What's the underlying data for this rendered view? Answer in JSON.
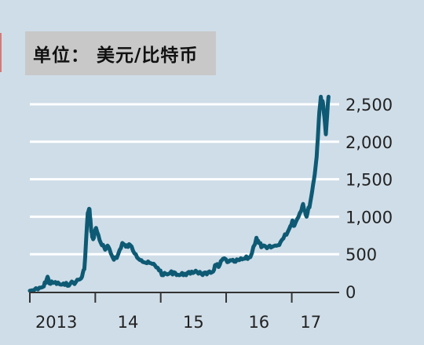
{
  "unit": {
    "label": "单位：",
    "value": "美元/比特币"
  },
  "colors": {
    "background": "#cfdde8",
    "line": "#0e5a74",
    "gridline": "#ffffff",
    "axis": "#333333",
    "label_box": "#c8c8c8"
  },
  "chart_data": {
    "type": "line",
    "title": "",
    "xlabel": "",
    "ylabel": "单位： 美元/比特币",
    "ylim": [
      0,
      2500
    ],
    "xlim": [
      "2013-01-01",
      "2017-08-01"
    ],
    "yticks": [
      0,
      500,
      1000,
      1500,
      2000,
      2500
    ],
    "ytick_labels": [
      "0",
      "500",
      "1,000",
      "1,500",
      "2,000",
      "2,500"
    ],
    "xticks": [
      "2013-01-01",
      "2014-01-01",
      "2015-01-01",
      "2016-01-01",
      "2017-01-01"
    ],
    "xtick_labels": [
      "2013",
      "14",
      "15",
      "16",
      "17"
    ],
    "grid": "horizontal",
    "series": [
      {
        "name": "",
        "x": [
          "2013-01-01",
          "2013-02-15",
          "2013-03-20",
          "2013-04-10",
          "2013-04-20",
          "2013-05-15",
          "2013-06-15",
          "2013-07-15",
          "2013-08-15",
          "2013-09-15",
          "2013-10-15",
          "2013-11-01",
          "2013-11-20",
          "2013-11-30",
          "2013-12-10",
          "2013-12-20",
          "2014-01-05",
          "2014-02-01",
          "2014-02-25",
          "2014-03-15",
          "2014-04-10",
          "2014-05-01",
          "2014-06-01",
          "2014-06-20",
          "2014-07-15",
          "2014-08-15",
          "2014-09-15",
          "2014-10-15",
          "2014-11-15",
          "2014-12-15",
          "2015-01-15",
          "2015-02-15",
          "2015-03-15",
          "2015-04-15",
          "2015-05-15",
          "2015-06-15",
          "2015-07-15",
          "2015-08-15",
          "2015-09-15",
          "2015-10-15",
          "2015-11-05",
          "2015-11-20",
          "2015-12-15",
          "2016-01-15",
          "2016-02-15",
          "2016-03-15",
          "2016-04-15",
          "2016-05-15",
          "2016-06-18",
          "2016-07-01",
          "2016-07-20",
          "2016-08-15",
          "2016-09-15",
          "2016-10-15",
          "2016-11-15",
          "2016-12-20",
          "2017-01-05",
          "2017-01-15",
          "2017-02-15",
          "2017-03-05",
          "2017-03-25",
          "2017-04-15",
          "2017-05-05",
          "2017-05-20",
          "2017-06-01",
          "2017-06-12",
          "2017-06-25",
          "2017-07-10",
          "2017-07-25"
        ],
        "values": [
          13,
          30,
          70,
          200,
          110,
          120,
          100,
          90,
          110,
          130,
          180,
          300,
          1050,
          1100,
          800,
          700,
          850,
          650,
          560,
          600,
          450,
          450,
          650,
          600,
          620,
          500,
          420,
          380,
          370,
          320,
          220,
          240,
          260,
          220,
          240,
          240,
          280,
          240,
          230,
          260,
          360,
          330,
          440,
          400,
          400,
          420,
          440,
          460,
          720,
          650,
          600,
          580,
          600,
          620,
          710,
          850,
          950,
          880,
          1050,
          1170,
          1000,
          1200,
          1500,
          1800,
          2300,
          2600,
          2500,
          2100,
          2600
        ]
      }
    ]
  }
}
